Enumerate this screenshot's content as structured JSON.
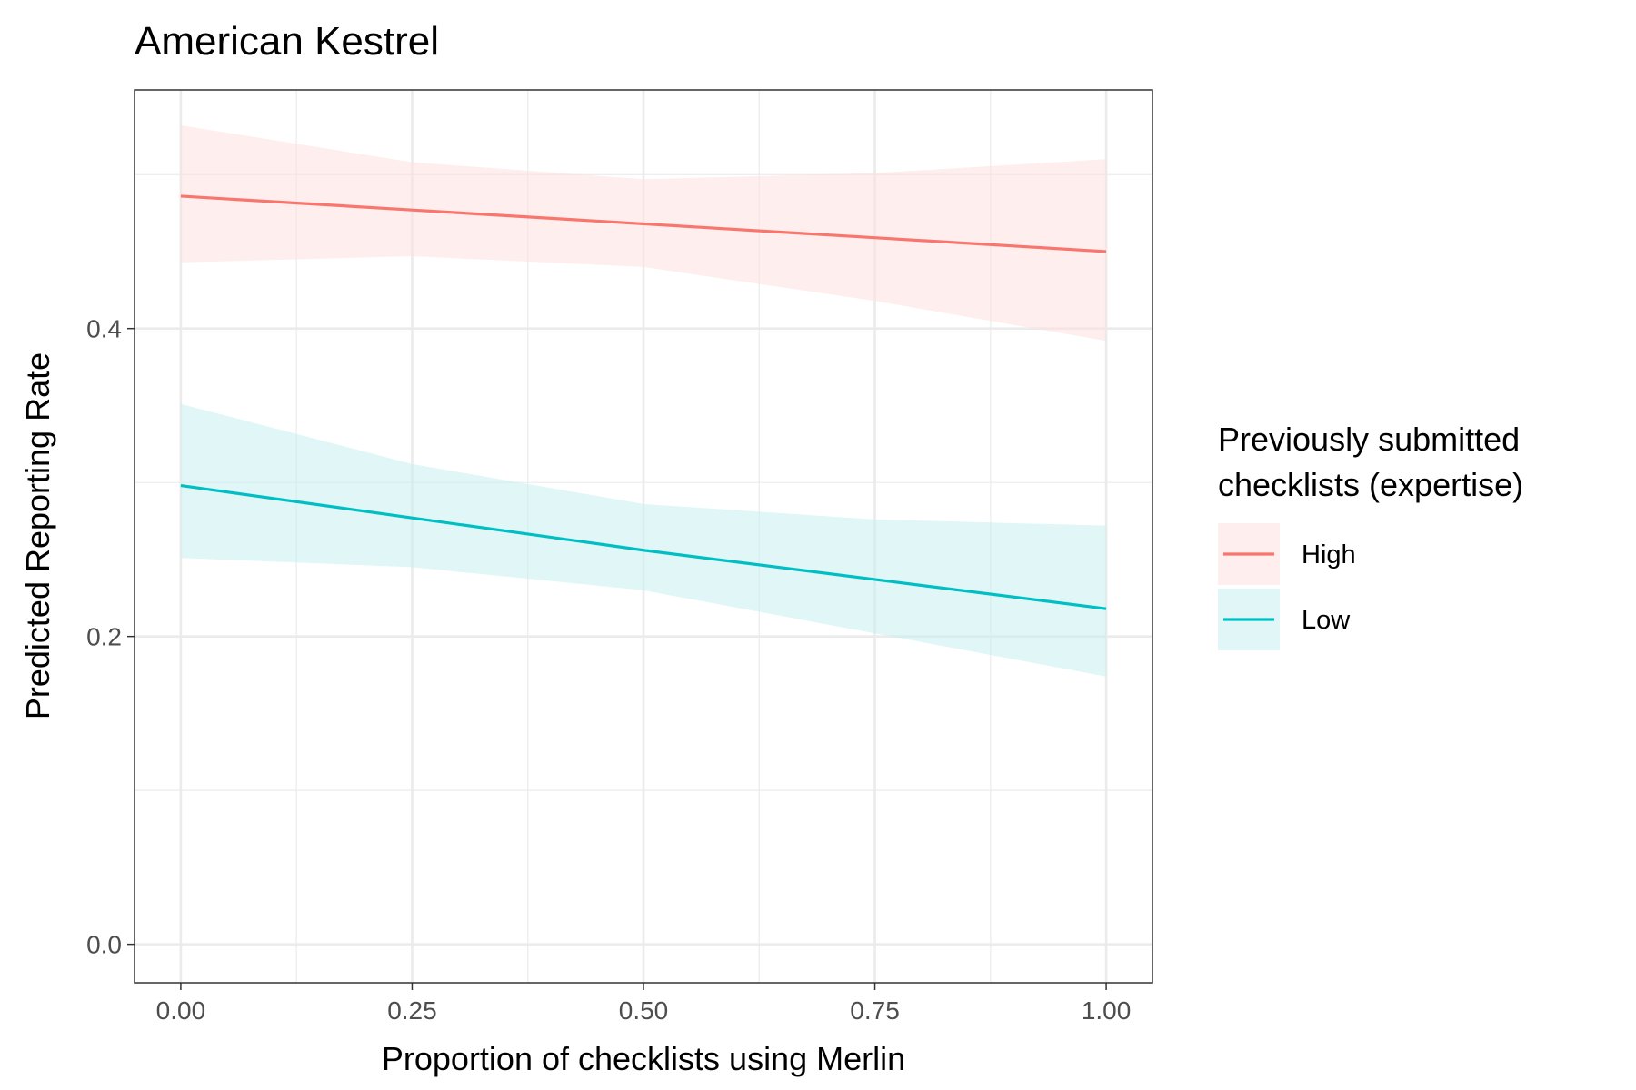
{
  "chart_data": {
    "type": "line",
    "title": "American Kestrel",
    "xlabel": "Proportion of checklists using Merlin",
    "ylabel": "Predicted Reporting Rate",
    "xlim": [
      -0.05,
      1.05
    ],
    "ylim": [
      -0.025,
      0.555
    ],
    "x_ticks": [
      0.0,
      0.25,
      0.5,
      0.75,
      1.0
    ],
    "x_tick_labels": [
      "0.00",
      "0.25",
      "0.50",
      "0.75",
      "1.00"
    ],
    "y_ticks": [
      0.0,
      0.2,
      0.4
    ],
    "y_tick_labels": [
      "0.0",
      "0.2",
      "0.4"
    ],
    "y_minor_ticks": [
      0.1,
      0.3,
      0.5
    ],
    "x_minor_ticks": [
      0.125,
      0.375,
      0.625,
      0.875
    ],
    "grid": true,
    "legend": {
      "title_lines": [
        "Previously submitted",
        "checklists (expertise)"
      ],
      "position": "right"
    },
    "series": [
      {
        "name": "High",
        "color": "#F8766D",
        "ribbon_color": "#FDE0DE",
        "x": [
          0.0,
          0.25,
          0.5,
          0.75,
          1.0
        ],
        "y": [
          0.486,
          0.477,
          0.468,
          0.459,
          0.45
        ],
        "lower": [
          0.443,
          0.447,
          0.44,
          0.418,
          0.392
        ],
        "upper": [
          0.532,
          0.508,
          0.497,
          0.501,
          0.51
        ]
      },
      {
        "name": "Low",
        "color": "#00BFC4",
        "ribbon_color": "#C6EEF0",
        "x": [
          0.0,
          0.25,
          0.5,
          0.75,
          1.0
        ],
        "y": [
          0.298,
          0.277,
          0.256,
          0.237,
          0.218
        ],
        "lower": [
          0.251,
          0.245,
          0.23,
          0.202,
          0.174
        ],
        "upper": [
          0.351,
          0.312,
          0.286,
          0.276,
          0.272
        ]
      }
    ]
  }
}
